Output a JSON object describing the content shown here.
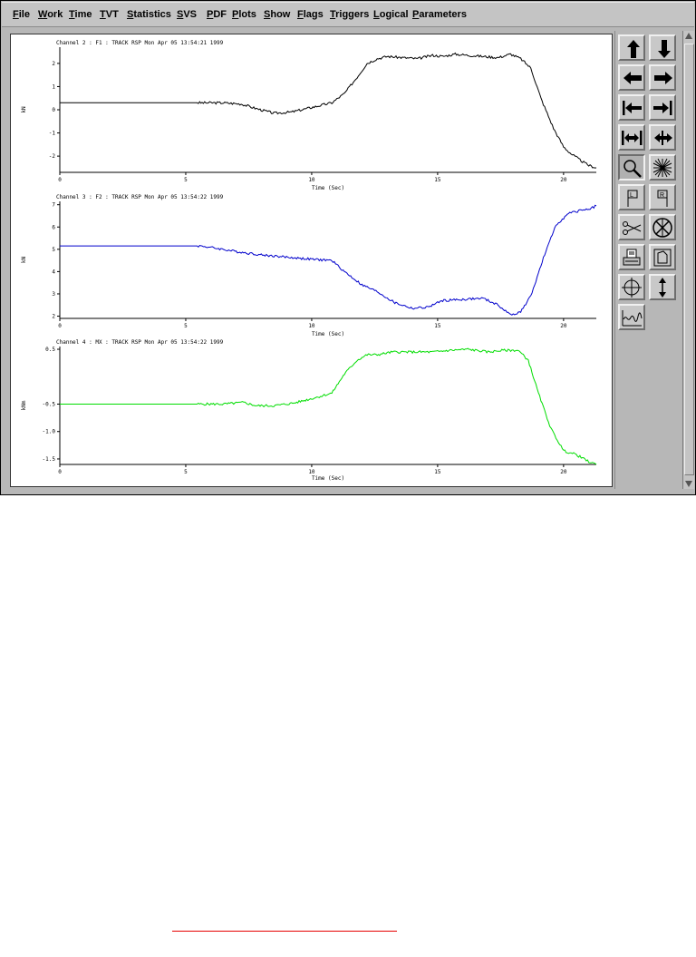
{
  "menu": [
    {
      "label": "File",
      "u": "F",
      "rest": "ile"
    },
    {
      "label": "Work",
      "u": "W",
      "rest": "ork"
    },
    {
      "label": "Time",
      "u": "T",
      "rest": "ime"
    },
    {
      "label": "TVT",
      "u": "T",
      "rest": "VT"
    },
    {
      "label": "Statistics",
      "u": "S",
      "rest": "tatistics"
    },
    {
      "label": "SVS",
      "u": "S",
      "rest": "VS"
    },
    {
      "label": "PDF",
      "u": "P",
      "rest": "DF"
    },
    {
      "label": "Plots",
      "u": "P",
      "rest": "lots"
    },
    {
      "label": "Show",
      "u": "S",
      "rest": "how"
    },
    {
      "label": "Flags",
      "u": "F",
      "rest": "lags"
    },
    {
      "label": "Triggers",
      "u": "T",
      "rest": "riggers"
    },
    {
      "label": "Logical",
      "u": "L",
      "rest": "ogical"
    },
    {
      "label": "Parameters",
      "u": "P",
      "rest": "arameters"
    }
  ],
  "chart_data": [
    {
      "type": "line",
      "title": "Channel 2 : F1 : TRACK RSP Mon Apr 05 13:54:21 1999",
      "xlabel": "Time (Sec)",
      "ylabel": "kN",
      "xlim": [
        0,
        21.3
      ],
      "ylim": [
        -2.7,
        2.7
      ],
      "xticks": [
        0,
        5,
        10,
        15,
        20
      ],
      "yticks": [
        2,
        1,
        0,
        -1,
        -2
      ],
      "color": "#000000",
      "x": [
        0,
        2,
        4,
        5.8,
        6.5,
        7.2,
        7.8,
        8.5,
        9.2,
        10,
        10.8,
        11.3,
        11.8,
        12.2,
        12.6,
        13,
        13.6,
        14.2,
        14.8,
        15.2,
        15.7,
        16.2,
        16.8,
        17.4,
        17.9,
        18.3,
        18.7,
        19.1,
        19.6,
        20.0,
        20.3,
        20.7,
        21.0,
        21.3
      ],
      "y": [
        0.3,
        0.3,
        0.3,
        0.3,
        0.3,
        0.25,
        0.05,
        -0.15,
        -0.1,
        0.1,
        0.3,
        0.7,
        1.4,
        2.0,
        2.2,
        2.3,
        2.25,
        2.2,
        2.35,
        2.3,
        2.4,
        2.35,
        2.3,
        2.25,
        2.4,
        2.2,
        1.8,
        0.5,
        -0.8,
        -1.6,
        -1.9,
        -2.2,
        -2.4,
        -2.5
      ]
    },
    {
      "type": "line",
      "title": "Channel 3 : F2 : TRACK RSP Mon Apr 05 13:54:22 1999",
      "xlabel": "Time (Sec)",
      "ylabel": "kN",
      "xlim": [
        0,
        21.3
      ],
      "ylim": [
        1.9,
        7.15
      ],
      "xticks": [
        0,
        5,
        10,
        15,
        20
      ],
      "yticks": [
        7,
        6,
        5,
        4,
        3,
        2
      ],
      "color": "#0000cc",
      "x": [
        0,
        2,
        4,
        5.6,
        6.2,
        7,
        8,
        9,
        10,
        10.8,
        11.3,
        12,
        12.6,
        13.3,
        14,
        14.6,
        15.2,
        16,
        16.8,
        17.4,
        17.9,
        18.3,
        18.7,
        19.2,
        19.7,
        20.2,
        20.7,
        21.1,
        21.3
      ],
      "y": [
        5.15,
        5.15,
        5.15,
        5.15,
        5.05,
        4.9,
        4.75,
        4.65,
        4.55,
        4.5,
        4.0,
        3.4,
        3.1,
        2.6,
        2.35,
        2.4,
        2.7,
        2.75,
        2.8,
        2.5,
        2.05,
        2.2,
        2.9,
        4.6,
        6.1,
        6.6,
        6.75,
        6.85,
        6.95
      ]
    },
    {
      "type": "line",
      "title": "Channel 4 : MX : TRACK RSP Mon Apr 05 13:54:22 1999",
      "xlabel": "Time (Sec)",
      "ylabel": "kNm",
      "xlim": [
        0,
        21.3
      ],
      "ylim": [
        -1.6,
        0.55
      ],
      "xticks": [
        0,
        5,
        10,
        15,
        20
      ],
      "yticks": [
        0.5,
        -0.5,
        -1.0,
        -1.5
      ],
      "ytick_labels": [
        "0.5",
        "-0.5",
        "-1.0",
        "-1.5"
      ],
      "color": "#00dd00",
      "x": [
        0,
        2,
        4,
        5.8,
        6.5,
        7.3,
        7.8,
        8.5,
        9.3,
        10,
        10.8,
        11.3,
        11.8,
        12.2,
        12.6,
        13.2,
        14,
        14.8,
        15.5,
        16.2,
        17,
        17.6,
        18.2,
        18.6,
        19,
        19.5,
        20.0,
        20.5,
        21.0,
        21.3
      ],
      "y": [
        -0.5,
        -0.5,
        -0.5,
        -0.5,
        -0.5,
        -0.47,
        -0.53,
        -0.53,
        -0.48,
        -0.4,
        -0.3,
        0.05,
        0.3,
        0.4,
        0.4,
        0.45,
        0.45,
        0.45,
        0.48,
        0.5,
        0.45,
        0.48,
        0.48,
        0.3,
        -0.3,
        -0.95,
        -1.35,
        -1.42,
        -1.55,
        -1.6
      ]
    }
  ],
  "tools": [
    {
      "icon": "arrow-up-icon"
    },
    {
      "icon": "arrow-down-icon"
    },
    {
      "icon": "arrow-left-icon"
    },
    {
      "icon": "arrow-right-icon"
    },
    {
      "icon": "jump-left-icon"
    },
    {
      "icon": "jump-right-icon"
    },
    {
      "icon": "expand-horizontal-icon"
    },
    {
      "icon": "compress-horizontal-icon"
    },
    {
      "icon": "zoom-icon"
    },
    {
      "icon": "star-burst-icon"
    },
    {
      "icon": "flag-left-icon"
    },
    {
      "icon": "flag-right-icon"
    },
    {
      "icon": "scissors-icon"
    },
    {
      "icon": "circle-cross-icon"
    },
    {
      "icon": "printer-icon"
    },
    {
      "icon": "page-icon"
    },
    {
      "icon": "crosshair-icon"
    },
    {
      "icon": "vertical-resize-icon"
    },
    {
      "icon": "waveform-icon"
    }
  ]
}
